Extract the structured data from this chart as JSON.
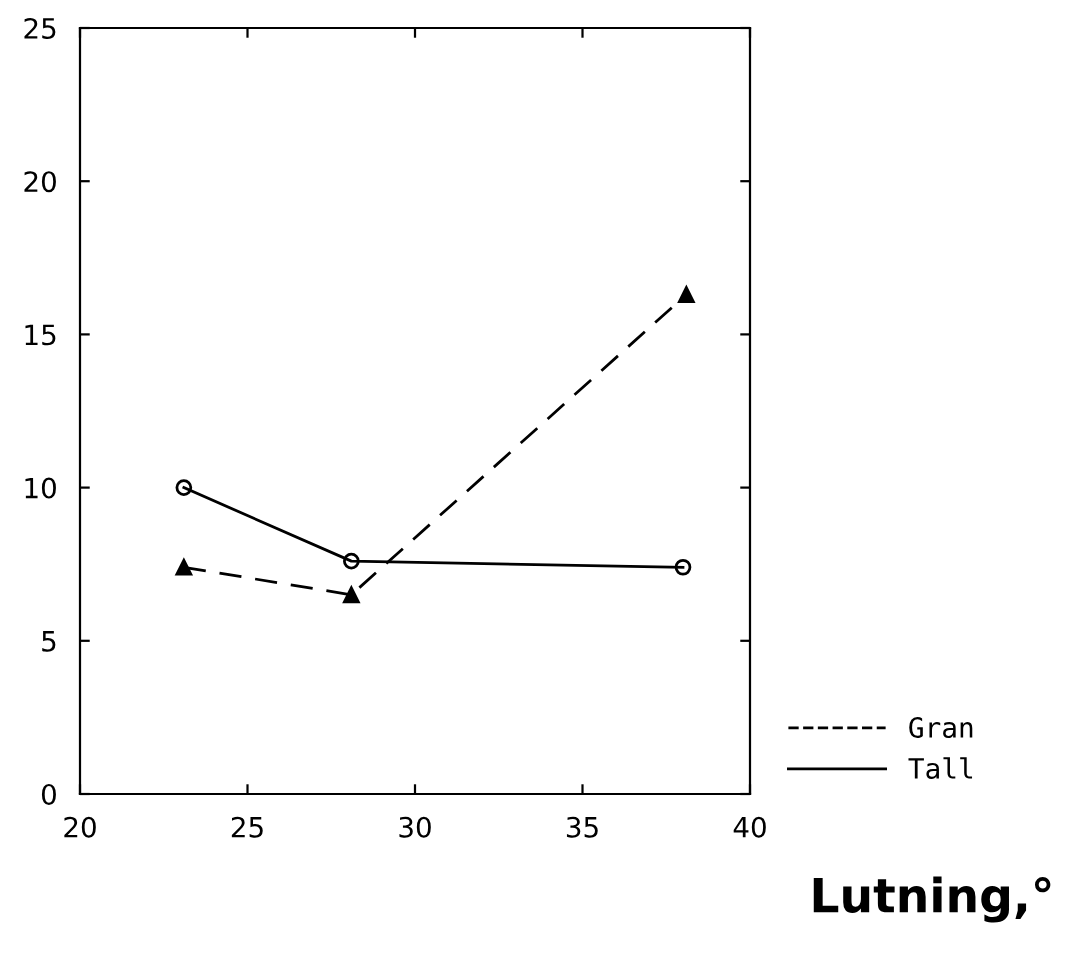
{
  "chart_data": {
    "type": "line",
    "xlabel": "Lutning,°",
    "xlim": [
      20,
      40
    ],
    "xticks": [
      20,
      25,
      30,
      35,
      40
    ],
    "ylim": [
      0,
      25
    ],
    "yticks": [
      0,
      5,
      10,
      15,
      20,
      25
    ],
    "grid": false,
    "legend": "bottom right",
    "series": [
      {
        "name": "Gran",
        "color": "#000000",
        "x": [
          23.1,
          28.1,
          38.1
        ],
        "values": [
          7.4,
          6.5,
          16.3
        ],
        "line_style": "dashed",
        "marker": "triangle"
      },
      {
        "name": "Tall",
        "color": "#000000",
        "x": [
          23.1,
          28.1,
          38.0
        ],
        "values": [
          10.0,
          7.6,
          7.4
        ],
        "line_style": "solid",
        "marker": "circle"
      }
    ]
  }
}
